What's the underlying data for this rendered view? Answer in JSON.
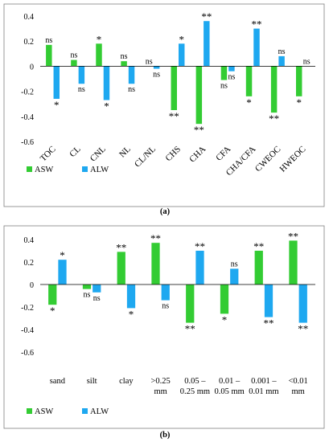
{
  "colors": {
    "ASW": "#33cc33",
    "ALW": "#1ea8f0",
    "frame": "#7f7f7f",
    "zero_line": "#000000"
  },
  "chart_data": [
    {
      "type": "bar",
      "panel_label": "(a)",
      "categories": [
        "TOC",
        "CL",
        "CNL",
        "NL",
        "CL/NL",
        "CHS",
        "CHA",
        "CFA",
        "CHA/CFA",
        "CWEOC",
        "HWEOC"
      ],
      "series": [
        {
          "name": "ASW",
          "values": [
            0.17,
            0.05,
            0.18,
            0.04,
            0.0,
            -0.35,
            -0.46,
            -0.11,
            -0.24,
            -0.37,
            -0.24
          ],
          "significance": [
            "ns",
            "ns",
            "*",
            "ns",
            "ns",
            "**",
            "**",
            "ns",
            "*",
            "**",
            "*"
          ]
        },
        {
          "name": "ALW",
          "values": [
            -0.26,
            -0.14,
            -0.27,
            -0.14,
            -0.02,
            0.18,
            0.36,
            -0.04,
            0.3,
            0.08,
            0.0
          ],
          "significance": [
            "*",
            "ns",
            "*",
            "ns",
            "ns",
            "*",
            "**",
            "ns",
            "**",
            "ns",
            "ns"
          ]
        }
      ],
      "ylim": [
        -0.6,
        0.4
      ],
      "yticks": [
        -0.6,
        -0.4,
        -0.2,
        0,
        0.2,
        0.4
      ],
      "ytick_labels": [
        "-0.6",
        "-0.4",
        "-0.2",
        "0",
        "0.2",
        "0.4"
      ],
      "legend_position": "bottom-left",
      "grid": false
    },
    {
      "type": "bar",
      "panel_label": "(b)",
      "categories": [
        "sand",
        "silt",
        "clay",
        ">0.25 mm",
        "0.05 – 0.25 mm",
        "0.01 – 0.05 mm",
        "0.001 – 0.01 mm",
        "<0.01 mm"
      ],
      "category_lines": [
        [
          "sand"
        ],
        [
          "silt"
        ],
        [
          "clay"
        ],
        [
          ">0.25",
          "mm"
        ],
        [
          "0.05 –",
          "0.25 mm"
        ],
        [
          "0.01 –",
          "0.05 mm"
        ],
        [
          "0.001 –",
          "0.01 mm"
        ],
        [
          "<0.01",
          "mm"
        ]
      ],
      "series": [
        {
          "name": "ASW",
          "values": [
            -0.18,
            -0.04,
            0.29,
            0.37,
            -0.34,
            -0.26,
            0.3,
            0.39
          ],
          "significance": [
            "*",
            "ns",
            "**",
            "**",
            "**",
            "*",
            "**",
            "**"
          ]
        },
        {
          "name": "ALW",
          "values": [
            0.22,
            -0.07,
            -0.21,
            -0.14,
            0.3,
            0.14,
            -0.29,
            -0.34
          ],
          "significance": [
            "*",
            "ns",
            "*",
            "ns",
            "**",
            "ns",
            "**",
            "**"
          ]
        }
      ],
      "ylim": [
        -0.6,
        0.4
      ],
      "yticks": [
        -0.6,
        -0.4,
        -0.2,
        0,
        0.2,
        0.4
      ],
      "ytick_labels": [
        "-0.6",
        "-0.4",
        "-0.2",
        "0",
        "0.2",
        "0.4"
      ],
      "legend_position": "bottom-left",
      "grid": false
    }
  ]
}
